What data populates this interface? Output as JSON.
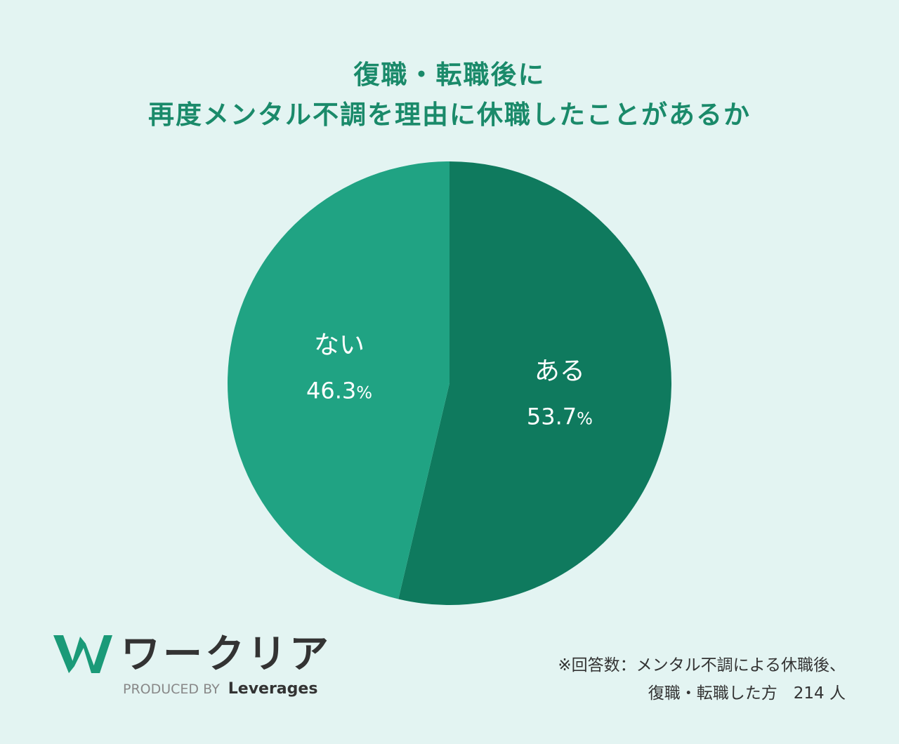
{
  "title": {
    "line1": "復職・転職後に",
    "line2": "再度メンタル不調を理由に休職したことがあるか"
  },
  "chart_data": {
    "type": "pie",
    "slices": [
      {
        "label": "ある",
        "value": 53.7,
        "value_text": "53.7",
        "unit": "%",
        "color": "#0f7a5e"
      },
      {
        "label": "ない",
        "value": 46.3,
        "value_text": "46.3",
        "unit": "%",
        "color": "#20a383"
      }
    ],
    "start_angle": "12 o'clock",
    "direction": "clockwise"
  },
  "footer": {
    "logo_text": "ワークリア",
    "produced_by": "PRODUCED BY",
    "brand": "Leverages",
    "note_line1": "※回答数：メンタル不調による休職後、",
    "note_line2": "復職・転職した方　214 人"
  },
  "colors": {
    "background": "#e3f4f2",
    "title": "#1a8a6a",
    "logo_green": "#1a9a78"
  },
  "icons": {
    "logo": "w-logo-icon"
  }
}
